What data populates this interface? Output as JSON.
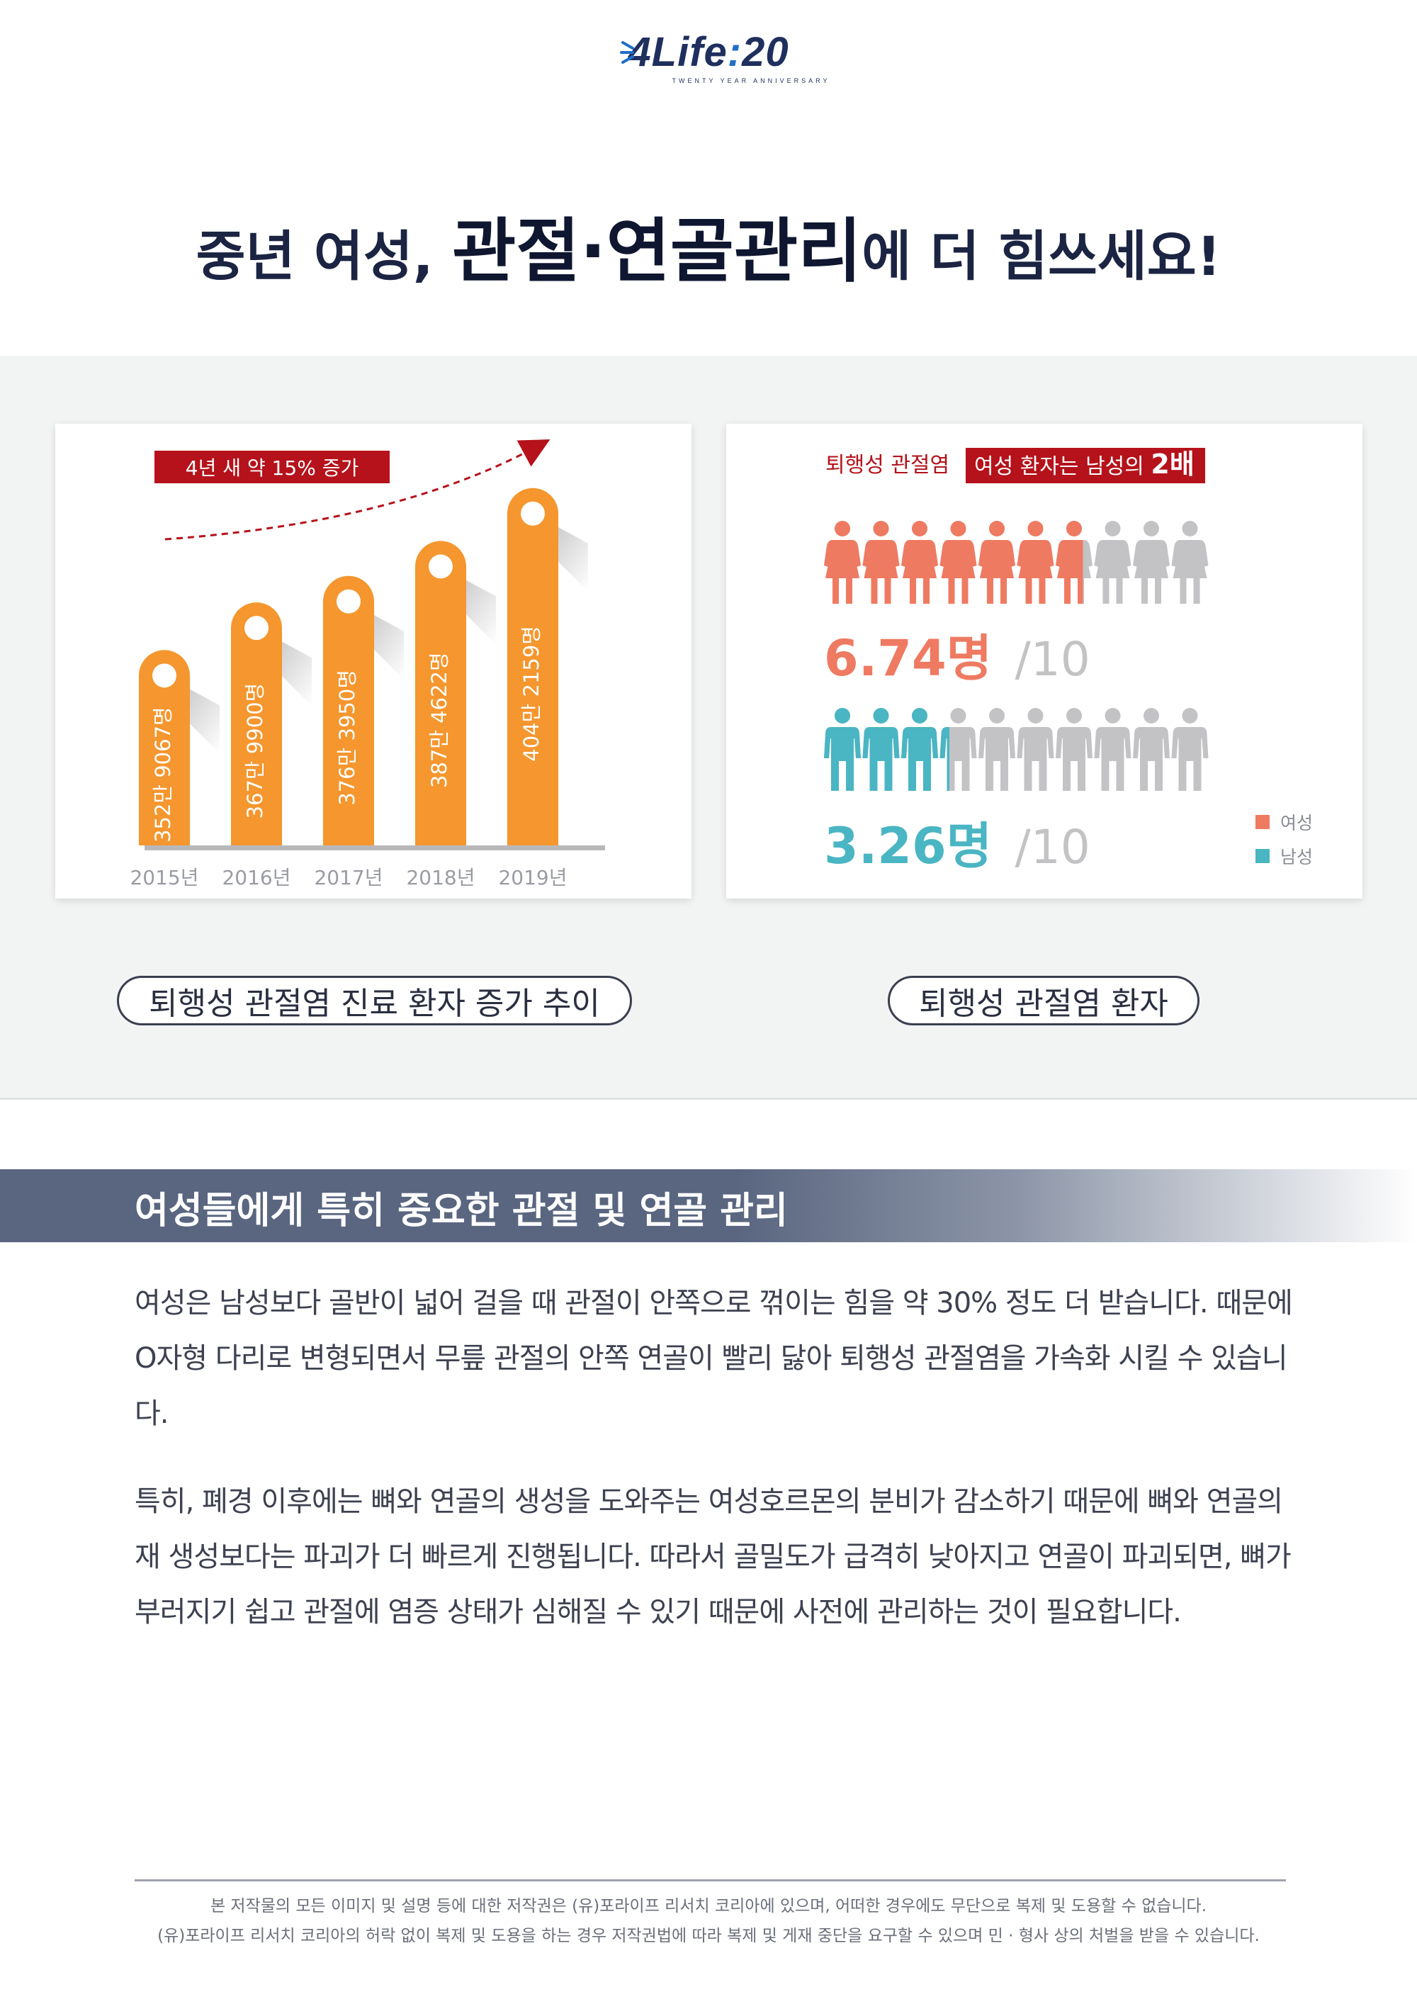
{
  "header": {
    "logo_text": "4Life",
    "logo_number": "20",
    "logo_sub": "TWENTY YEAR ANNIVERSARY",
    "headline_a": "중년 여성, ",
    "headline_b": "관절·연골관리",
    "headline_c": "에 더 힘쓰세요!"
  },
  "colors": {
    "orange": "#f5962e",
    "female": "#ef7a62",
    "male": "#4ab5c3",
    "gray_figure": "#c3c3c6",
    "banner_red": "#b5121b",
    "navy": "#1b2442"
  },
  "chart_data": [
    {
      "type": "bar",
      "annotation": "4년 새 약 15% 증가",
      "categories": [
        "2015년",
        "2016년",
        "2017년",
        "2018년",
        "2019년"
      ],
      "values": [
        3529067,
        3679900,
        3763950,
        3874622,
        4042159
      ],
      "value_labels": [
        "352만 9067명",
        "367만 9900명",
        "376만 3950명",
        "387만 4622명",
        "404만 2159명"
      ],
      "caption": "퇴행성 관절염 진료 환자 증가 추이"
    },
    {
      "type": "pictograph",
      "title_a": "퇴행성 관절염",
      "title_b": "여성 환자는 남성의",
      "title_c": "2배",
      "total": 10,
      "series": [
        {
          "name": "여성",
          "value": 6.74,
          "label": "6.74명",
          "suffix": "/10",
          "icon": "female-figure-icon"
        },
        {
          "name": "남성",
          "value": 3.26,
          "label": "3.26명",
          "suffix": "/10",
          "icon": "male-figure-icon"
        }
      ],
      "legend": [
        "여성",
        "남성"
      ],
      "caption": "퇴행성 관절염 환자"
    }
  ],
  "section": {
    "title": "여성들에게 특히 중요한 관절 및 연골 관리",
    "paragraph1": "여성은 남성보다 골반이 넓어 걸을 때 관절이 안쪽으로 꺾이는 힘을 약 30% 정도 더 받습니다. 때문에 O자형 다리로 변형되면서 무릎 관절의 안쪽 연골이 빨리 닳아 퇴행성 관절염을 가속화 시킬 수 있습니다.",
    "paragraph2": "특히, 폐경 이후에는 뼈와 연골의 생성을 도와주는 여성호르몬의 분비가 감소하기 때문에 뼈와 연골의 재 생성보다는 파괴가 더 빠르게 진행됩니다. 따라서 골밀도가 급격히 낮아지고 연골이 파괴되면, 뼈가 부러지기 쉽고 관절에 염증 상태가 심해질 수 있기 때문에 사전에 관리하는 것이 필요합니다."
  },
  "footer": {
    "line1": "본 저작물의 모든 이미지 및 설명 등에 대한 저작권은 (유)포라이프 리서치 코리아에 있으며, 어떠한 경우에도 무단으로 복제 및 도용할 수 없습니다.",
    "line2": "(유)포라이프 리서치 코리아의 허락 없이 복제 및 도용을 하는 경우 저작권법에 따라 복제 및 게재 중단을 요구할 수 있으며 민 · 형사 상의 처벌을 받을 수 있습니다."
  }
}
